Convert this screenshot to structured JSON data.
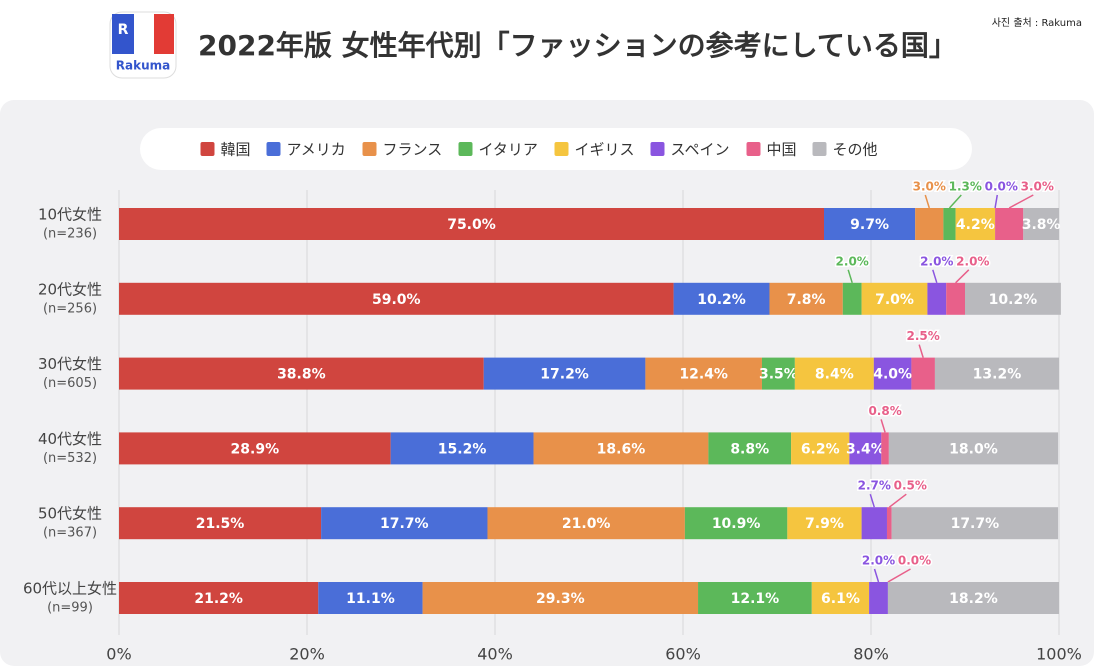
{
  "chart_data": {
    "type": "stacked_barh",
    "title": "2022年版 女性年代別「ファッションの参考にしている国」",
    "source": "사진 출처 : Rakuma",
    "logo_letter": "R",
    "logo_text": "Rakuma",
    "categories": [
      "10代女性",
      "20代女性",
      "30代女性",
      "40代女性",
      "50代女性",
      "60代以上女性"
    ],
    "sample_sizes": [
      "(n=236)",
      "(n=256)",
      "(n=605)",
      "(n=532)",
      "(n=367)",
      "(n=99)"
    ],
    "series": [
      {
        "name": "韓国",
        "color": "#d0453f",
        "values": [
          75.0,
          59.0,
          38.8,
          28.9,
          21.5,
          21.2
        ],
        "value_labels": [
          "75.0%",
          "59.0%",
          "38.8%",
          "28.9%",
          "21.5%",
          "21.2%"
        ]
      },
      {
        "name": "アメリカ",
        "color": "#4a6ed8",
        "values": [
          9.7,
          10.2,
          17.2,
          15.2,
          17.7,
          11.1
        ],
        "value_labels": [
          "9.7%",
          "10.2%",
          "17.2%",
          "15.2%",
          "17.7%",
          "11.1%"
        ]
      },
      {
        "name": "フランス",
        "color": "#e8914a",
        "values": [
          3.0,
          7.8,
          12.4,
          18.6,
          21.0,
          29.3
        ],
        "value_labels": [
          "3.0%",
          "7.8%",
          "12.4%",
          "18.6%",
          "21.0%",
          "29.3%"
        ]
      },
      {
        "name": "イタリア",
        "color": "#5cb85a",
        "values": [
          1.3,
          2.0,
          3.5,
          8.8,
          10.9,
          12.1
        ],
        "value_labels": [
          "1.3%",
          "2.0%",
          "3.5%",
          "8.8%",
          "10.9%",
          "12.1%"
        ]
      },
      {
        "name": "イギリス",
        "color": "#f5c53f",
        "values": [
          4.2,
          7.0,
          8.4,
          6.2,
          7.9,
          6.1
        ],
        "value_labels": [
          "4.2%",
          "7.0%",
          "8.4%",
          "6.2%",
          "7.9%",
          "6.1%"
        ]
      },
      {
        "name": "スペイン",
        "color": "#8a55e0",
        "values": [
          0.0,
          2.0,
          4.0,
          3.4,
          2.7,
          2.0
        ],
        "value_labels": [
          "0.0%",
          "2.0%",
          "4.0%",
          "3.4%",
          "2.7%",
          "2.0%"
        ]
      },
      {
        "name": "中国",
        "color": "#e8608a",
        "values": [
          3.0,
          2.0,
          2.5,
          0.8,
          0.5,
          0.0
        ],
        "value_labels": [
          "3.0%",
          "2.0%",
          "2.5%",
          "0.8%",
          "0.5%",
          "0.0%"
        ]
      },
      {
        "name": "その他",
        "color": "#b9b9bd",
        "values": [
          3.8,
          10.2,
          13.2,
          18.0,
          17.7,
          18.2
        ],
        "value_labels": [
          "3.8%",
          "10.2%",
          "13.2%",
          "18.0%",
          "17.7%",
          "18.2%"
        ]
      }
    ],
    "xlim": [
      0,
      100
    ],
    "xticks": [
      {
        "value": 0,
        "label": "0%"
      },
      {
        "value": 20,
        "label": "20%"
      },
      {
        "value": 40,
        "label": "40%"
      },
      {
        "value": 60,
        "label": "60%"
      },
      {
        "value": 80,
        "label": "80%"
      },
      {
        "value": 100,
        "label": "100%"
      }
    ],
    "grid": true
  }
}
